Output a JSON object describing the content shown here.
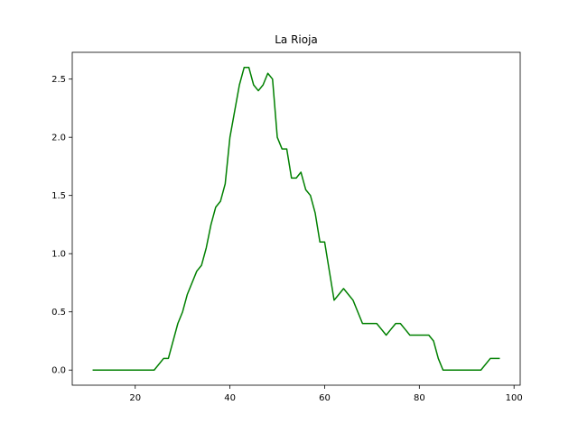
{
  "chart_data": {
    "type": "line",
    "title": "La Rioja",
    "xlabel": "",
    "ylabel": "",
    "xlim": [
      6.7,
      101.3
    ],
    "ylim": [
      -0.13,
      2.73
    ],
    "grid": false,
    "xticks": [
      20,
      40,
      60,
      80,
      100
    ],
    "yticks": [
      0.0,
      0.5,
      1.0,
      1.5,
      2.0,
      2.5
    ],
    "xtick_labels": [
      "20",
      "40",
      "60",
      "80",
      "100"
    ],
    "ytick_labels": [
      "0.0",
      "0.5",
      "1.0",
      "1.5",
      "2.0",
      "2.5"
    ],
    "series": [
      {
        "color": "#008000",
        "x": [
          11,
          24,
          26,
          27,
          29,
          30,
          31,
          33,
          34,
          35,
          36,
          37,
          38,
          39,
          40,
          42,
          43,
          44,
          45,
          46,
          47,
          48,
          49,
          50,
          51,
          52,
          53,
          54,
          55,
          56,
          57,
          58,
          59,
          60,
          61,
          62,
          63,
          64,
          65,
          66,
          67,
          68,
          69,
          70,
          71,
          72,
          73,
          74,
          75,
          76,
          77,
          78,
          79,
          80,
          81,
          82,
          83,
          84,
          85,
          86,
          93,
          95,
          97
        ],
        "y": [
          0.0,
          0.0,
          0.1,
          0.1,
          0.4,
          0.5,
          0.65,
          0.85,
          0.9,
          1.05,
          1.25,
          1.4,
          1.45,
          1.6,
          2.0,
          2.45,
          2.6,
          2.6,
          2.45,
          2.4,
          2.45,
          2.55,
          2.5,
          2.0,
          1.9,
          1.9,
          1.65,
          1.65,
          1.7,
          1.55,
          1.5,
          1.35,
          1.1,
          1.1,
          0.85,
          0.6,
          0.65,
          0.7,
          0.65,
          0.6,
          0.5,
          0.4,
          0.4,
          0.4,
          0.4,
          0.35,
          0.3,
          0.35,
          0.4,
          0.4,
          0.35,
          0.3,
          0.3,
          0.3,
          0.3,
          0.3,
          0.25,
          0.1,
          0.0,
          0.0,
          0.0,
          0.1,
          0.1
        ]
      }
    ]
  }
}
